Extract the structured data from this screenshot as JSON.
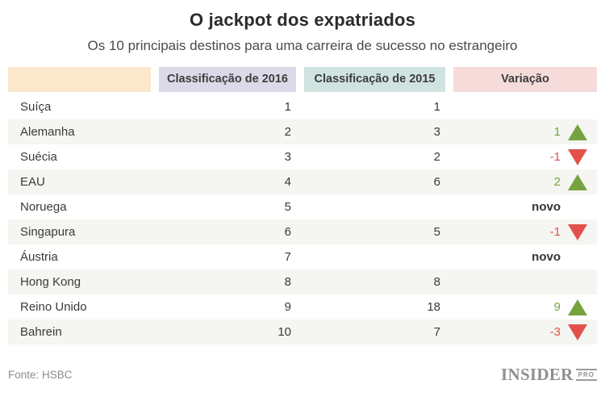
{
  "chart_data": {
    "type": "table",
    "title": "O jackpot dos expatriados",
    "subtitle": "Os 10 principais destinos para uma carreira de sucesso no estrangeiro",
    "columns": [
      "",
      "Classificação de 2016",
      "Classificação de 2015",
      "Variação"
    ],
    "rows": [
      {
        "country": "Suíça",
        "rank_2016": 1,
        "rank_2015": "1",
        "variation": "",
        "direction": "none"
      },
      {
        "country": "Alemanha",
        "rank_2016": 2,
        "rank_2015": "3",
        "variation": "1",
        "direction": "up"
      },
      {
        "country": "Suécia",
        "rank_2016": 3,
        "rank_2015": "2",
        "variation": "-1",
        "direction": "down"
      },
      {
        "country": "EAU",
        "rank_2016": 4,
        "rank_2015": "6",
        "variation": "2",
        "direction": "up"
      },
      {
        "country": "Noruega",
        "rank_2016": 5,
        "rank_2015": "",
        "variation": "novo",
        "direction": "none"
      },
      {
        "country": "Singapura",
        "rank_2016": 6,
        "rank_2015": "5",
        "variation": "-1",
        "direction": "down"
      },
      {
        "country": "Áustria",
        "rank_2016": 7,
        "rank_2015": "",
        "variation": "novo",
        "direction": "none"
      },
      {
        "country": "Hong Kong",
        "rank_2016": 8,
        "rank_2015": "8",
        "variation": "",
        "direction": "none"
      },
      {
        "country": "Reino Unido",
        "rank_2016": 9,
        "rank_2015": "18",
        "variation": "9",
        "direction": "up"
      },
      {
        "country": "Bahrein",
        "rank_2016": 10,
        "rank_2015": "7",
        "variation": "-3",
        "direction": "down"
      }
    ],
    "legend_position": "none",
    "grid": "off"
  },
  "colors": {
    "header_col1_bg": "#fbe7cc",
    "header_col2_bg": "#dcd9e8",
    "header_col3_bg": "#cfe3e0",
    "header_col4_bg": "#f5dcdb",
    "row_stripe": "#f5f5f2",
    "up_green": "#76a33f",
    "down_red": "#e2514c",
    "text_dark": "#3a3a3a",
    "footer_gray": "#8d8d8d"
  },
  "footer": {
    "source": "Fonte: HSBC",
    "brand": "INSIDER",
    "brand_badge": "PRO"
  }
}
